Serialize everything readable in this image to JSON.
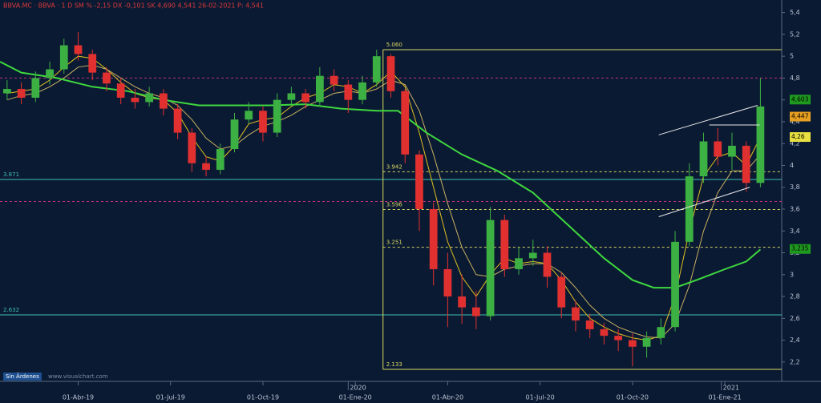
{
  "chart_data": {
    "type": "candlestick",
    "header": "BBVA.MC · BBVA · 1 D SM % -2,15 DX -0,101 SK 4,690 4,541 26-02-2021 P: 4,541",
    "watermark": "www.visualchart.com",
    "orders_label": "Sin Ãrdenes",
    "background": "#0b1a33",
    "up_color": "#3cb043",
    "down_color": "#e03030",
    "xlim": [
      2,
      112
    ],
    "ylim": [
      2.03,
      5.5
    ],
    "xticks": [
      {
        "value": 13,
        "label": "01-Abr-19"
      },
      {
        "value": 26,
        "label": "01-Jul-19"
      },
      {
        "value": 39,
        "label": "01-Oct-19"
      },
      {
        "value": 52,
        "label": "01-Ene-20"
      },
      {
        "value": 65,
        "label": "01-Abr-20"
      },
      {
        "value": 78,
        "label": "01-Jul-20"
      },
      {
        "value": 91,
        "label": "01-Oct-20"
      },
      {
        "value": 104,
        "label": "01-Ene-21"
      }
    ],
    "year_labels": [
      {
        "value": 51,
        "label": "2020"
      },
      {
        "value": 103.5,
        "label": "2021"
      }
    ],
    "yticks": [
      {
        "value": 2.2,
        "label": "2,2"
      },
      {
        "value": 2.4,
        "label": "2,4"
      },
      {
        "value": 2.6,
        "label": "2,6"
      },
      {
        "value": 2.8,
        "label": "2,8"
      },
      3,
      {
        "value": 3.2,
        "label": "3,2"
      },
      {
        "value": 3.4,
        "label": "3,4"
      },
      {
        "value": 3.6,
        "label": "3,6"
      },
      {
        "value": 3.8,
        "label": "3,8"
      },
      4,
      {
        "value": 4.2,
        "label": "4,2"
      },
      {
        "value": 4.4,
        "label": "4,4"
      },
      {
        "value": 4.6,
        "label": "4,6"
      },
      {
        "value": 4.8,
        "label": "4,8"
      },
      5,
      {
        "value": 5.2,
        "label": "5,2"
      },
      {
        "value": 5.4,
        "label": "5,4"
      }
    ],
    "x": [
      3,
      5,
      7,
      9,
      11,
      13,
      15,
      17,
      19,
      21,
      23,
      25,
      27,
      29,
      31,
      33,
      35,
      37,
      39,
      41,
      43,
      45,
      47,
      49,
      51,
      53,
      55,
      57,
      59,
      61,
      63,
      65,
      67,
      69,
      71,
      73,
      75,
      77,
      79,
      81,
      83,
      85,
      87,
      89,
      91,
      93,
      95,
      97,
      99,
      101,
      103,
      105,
      107,
      109
    ],
    "open": [
      4.66,
      4.7,
      4.62,
      4.8,
      4.88,
      5.1,
      5.02,
      4.85,
      4.75,
      4.62,
      4.58,
      4.66,
      4.52,
      4.3,
      4.02,
      3.96,
      4.15,
      4.42,
      4.5,
      4.3,
      4.6,
      4.66,
      4.58,
      4.82,
      4.74,
      4.6,
      4.76,
      5.0,
      4.68,
      4.1,
      3.6,
      3.05,
      2.8,
      2.7,
      2.62,
      3.5,
      3.05,
      3.15,
      3.2,
      2.98,
      2.7,
      2.58,
      2.5,
      2.44,
      2.4,
      2.34,
      2.42,
      2.52,
      3.3,
      3.9,
      4.22,
      4.08,
      4.18,
      3.84
    ],
    "high": [
      4.78,
      4.76,
      4.86,
      4.95,
      5.16,
      5.22,
      5.06,
      4.9,
      4.8,
      4.7,
      4.72,
      4.7,
      4.56,
      4.34,
      4.08,
      4.2,
      4.48,
      4.58,
      4.54,
      4.66,
      4.72,
      4.7,
      4.9,
      4.88,
      4.78,
      4.82,
      5.06,
      5.02,
      4.7,
      4.14,
      3.66,
      3.2,
      3.0,
      2.85,
      3.62,
      3.55,
      3.25,
      3.32,
      3.26,
      3.02,
      2.76,
      2.64,
      2.56,
      2.5,
      2.46,
      2.48,
      2.6,
      3.4,
      4.02,
      4.3,
      4.34,
      4.3,
      4.22,
      4.8
    ],
    "low": [
      4.6,
      4.56,
      4.58,
      4.74,
      4.84,
      4.96,
      4.78,
      4.68,
      4.56,
      4.52,
      4.54,
      4.46,
      4.24,
      3.94,
      3.9,
      3.92,
      4.12,
      4.38,
      4.22,
      4.26,
      4.56,
      4.52,
      4.54,
      4.68,
      4.48,
      4.56,
      4.72,
      4.62,
      4.02,
      3.4,
      2.9,
      2.52,
      2.55,
      2.5,
      2.58,
      2.98,
      3.0,
      3.08,
      2.88,
      2.6,
      2.48,
      2.42,
      2.36,
      2.3,
      2.16,
      2.24,
      2.36,
      2.48,
      3.26,
      3.84,
      4.0,
      3.96,
      3.76,
      3.8
    ],
    "close": [
      4.7,
      4.62,
      4.8,
      4.88,
      5.1,
      5.02,
      4.85,
      4.75,
      4.62,
      4.58,
      4.66,
      4.52,
      4.3,
      4.02,
      3.96,
      4.15,
      4.42,
      4.5,
      4.3,
      4.6,
      4.66,
      4.58,
      4.82,
      4.74,
      4.6,
      4.76,
      5.0,
      4.68,
      4.1,
      3.6,
      3.05,
      2.8,
      2.7,
      2.62,
      3.5,
      3.05,
      3.15,
      3.2,
      2.98,
      2.7,
      2.58,
      2.5,
      2.44,
      2.4,
      2.34,
      2.42,
      2.52,
      3.3,
      3.9,
      4.22,
      4.08,
      4.18,
      3.84,
      4.54
    ],
    "lines": [
      {
        "color": "#e0c020",
        "width": 1,
        "x": [
          3,
          5,
          7,
          9,
          11,
          13,
          15,
          17,
          19,
          21,
          23,
          25,
          27,
          29,
          31,
          33,
          35,
          37,
          39,
          41,
          43,
          45,
          47,
          49,
          51,
          53,
          55,
          57,
          59,
          61,
          63,
          65,
          67,
          69,
          71,
          73,
          75,
          77,
          79,
          81,
          83,
          85,
          87,
          89,
          91,
          93,
          95,
          97,
          99,
          101,
          103,
          105,
          107,
          109
        ],
        "values": [
          4.66,
          4.68,
          4.7,
          4.78,
          4.9,
          5.0,
          4.98,
          4.88,
          4.76,
          4.66,
          4.62,
          4.6,
          4.48,
          4.26,
          4.08,
          4.04,
          4.18,
          4.38,
          4.42,
          4.44,
          4.54,
          4.62,
          4.66,
          4.74,
          4.72,
          4.66,
          4.74,
          4.86,
          4.72,
          4.3,
          3.8,
          3.3,
          2.98,
          2.8,
          3.0,
          3.15,
          3.1,
          3.12,
          3.1,
          2.95,
          2.75,
          2.6,
          2.52,
          2.46,
          2.42,
          2.4,
          2.44,
          2.8,
          3.4,
          3.9,
          4.08,
          4.12,
          4.0,
          4.26
        ]
      },
      {
        "color": "#c8b060",
        "width": 1,
        "x": [
          3,
          5,
          7,
          9,
          11,
          13,
          15,
          17,
          19,
          21,
          23,
          25,
          27,
          29,
          31,
          33,
          35,
          37,
          39,
          41,
          43,
          45,
          47,
          49,
          51,
          53,
          55,
          57,
          59,
          61,
          63,
          65,
          67,
          69,
          71,
          73,
          75,
          77,
          79,
          81,
          83,
          85,
          87,
          89,
          91,
          93,
          95,
          97,
          99,
          101,
          103,
          105,
          107,
          109
        ],
        "values": [
          4.6,
          4.64,
          4.66,
          4.72,
          4.8,
          4.9,
          4.92,
          4.88,
          4.8,
          4.72,
          4.66,
          4.62,
          4.55,
          4.42,
          4.25,
          4.15,
          4.18,
          4.28,
          4.36,
          4.4,
          4.46,
          4.54,
          4.6,
          4.66,
          4.68,
          4.66,
          4.7,
          4.78,
          4.74,
          4.5,
          4.1,
          3.65,
          3.25,
          3.0,
          2.98,
          3.05,
          3.08,
          3.1,
          3.1,
          3.02,
          2.88,
          2.72,
          2.6,
          2.52,
          2.47,
          2.43,
          2.42,
          2.55,
          2.9,
          3.4,
          3.75,
          3.95,
          3.95,
          4.1
        ]
      },
      {
        "color": "#3ed83e",
        "width": 2,
        "x": [
          2,
          5,
          10,
          15,
          20,
          25,
          30,
          35,
          40,
          45,
          50,
          55,
          58,
          62,
          67,
          72,
          77,
          82,
          87,
          91,
          94,
          97,
          100,
          104,
          107,
          109
        ],
        "values": [
          4.95,
          4.85,
          4.8,
          4.72,
          4.68,
          4.6,
          4.55,
          4.55,
          4.55,
          4.56,
          4.52,
          4.5,
          4.5,
          4.3,
          4.1,
          3.95,
          3.75,
          3.45,
          3.15,
          2.95,
          2.88,
          2.88,
          2.95,
          3.05,
          3.12,
          3.23
        ]
      }
    ],
    "levels": [
      {
        "value": 5.06,
        "label": "5.060",
        "from": 55.9,
        "color": "#d8d860",
        "style": "solid"
      },
      {
        "value": 3.942,
        "label": "3.942",
        "from": 55.9,
        "color": "#d8d860",
        "style": "dashed"
      },
      {
        "value": 3.596,
        "label": "3.596",
        "from": 55.9,
        "color": "#d8d860",
        "style": "dashed"
      },
      {
        "value": 3.251,
        "label": "3.251",
        "from": 55.9,
        "color": "#d8d860",
        "style": "dashed"
      },
      {
        "value": 2.133,
        "label": "2.133",
        "from": 55.9,
        "color": "#d8d860",
        "style": "solid"
      },
      {
        "value": 3.871,
        "label": "3.871",
        "from": 2,
        "color": "#3fc0b0",
        "style": "solid"
      },
      {
        "value": 2.632,
        "label": "2.632",
        "from": 2,
        "color": "#3fc0b0",
        "style": "solid"
      },
      {
        "value": 4.8,
        "from": 2,
        "color": "#c0307a",
        "style": "dashed"
      },
      {
        "value": 3.67,
        "from": 2,
        "color": "#c0307a",
        "style": "dashed"
      }
    ],
    "fib_box": {
      "x": 55.9,
      "from": 2.133,
      "to": 5.06,
      "color": "#d8d860"
    },
    "channels": [
      {
        "x": [
          94.7,
          108.6
        ],
        "y": [
          4.28,
          4.55
        ]
      },
      {
        "x": [
          94.7,
          107.5
        ],
        "y": [
          3.53,
          3.8
        ]
      },
      {
        "x": [
          101.8,
          108.9
        ],
        "y": [
          4.37,
          4.37
        ]
      }
    ],
    "price_tags": [
      {
        "value": 4.603,
        "label": "4,603",
        "color": "#1f9a1f"
      },
      {
        "value": 4.447,
        "label": "4,447",
        "color": "#e8a020"
      },
      {
        "value": 4.26,
        "label": "4,26",
        "color": "#e8e040"
      },
      {
        "value": 3.235,
        "label": "3,235",
        "color": "#1f9a1f"
      }
    ]
  }
}
